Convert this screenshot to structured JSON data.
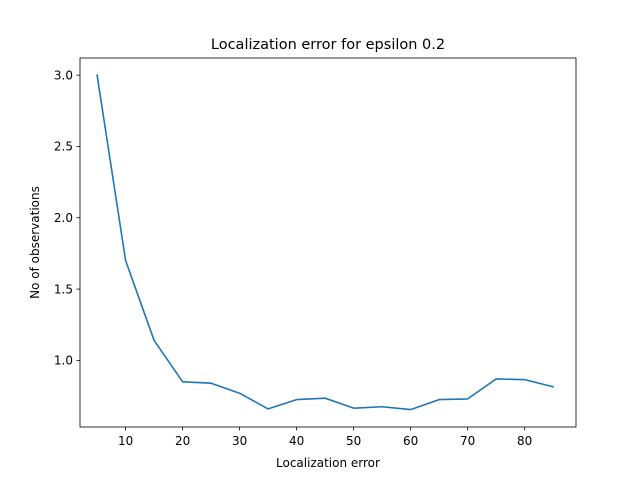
{
  "chart_data": {
    "type": "line",
    "title": "Localization error for epsilon 0.2",
    "xlabel": "Localization error",
    "ylabel": "No of observations",
    "xlim": [
      2.0,
      89.0
    ],
    "ylim": [
      0.533,
      3.12
    ],
    "xticks": [
      10,
      20,
      30,
      40,
      50,
      60,
      70,
      80
    ],
    "yticks": [
      1.0,
      1.5,
      2.0,
      2.5,
      3.0
    ],
    "ytick_labels": [
      "1.0",
      "1.5",
      "2.0",
      "2.5",
      "3.0"
    ],
    "grid": false,
    "series": [
      {
        "color": "#1f77b4",
        "x": [
          5,
          10,
          15,
          20,
          25,
          30,
          35,
          40,
          45,
          50,
          55,
          60,
          65,
          70,
          75,
          80,
          85
        ],
        "y": [
          3.0,
          1.7,
          1.14,
          0.85,
          0.84,
          0.77,
          0.66,
          0.725,
          0.735,
          0.665,
          0.675,
          0.655,
          0.725,
          0.73,
          0.87,
          0.865,
          0.815
        ]
      }
    ]
  }
}
